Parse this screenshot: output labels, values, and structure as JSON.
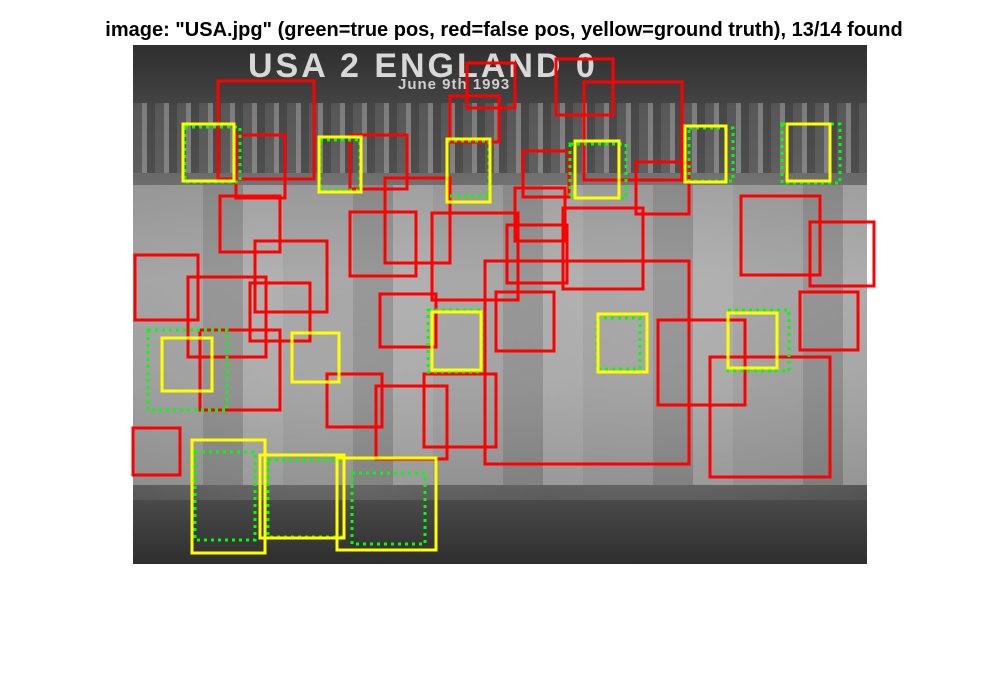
{
  "title": "image: \"USA.jpg\" (green=true pos, red=false pos, yellow=ground truth), 13/14 found",
  "banner": {
    "main": "USA 2 ENGLAND 0",
    "sub": "June 9th 1993"
  },
  "colors": {
    "true_pos": "#00ff00",
    "false_pos": "#ff0000",
    "ground_truth": "#ffff00"
  }
}
